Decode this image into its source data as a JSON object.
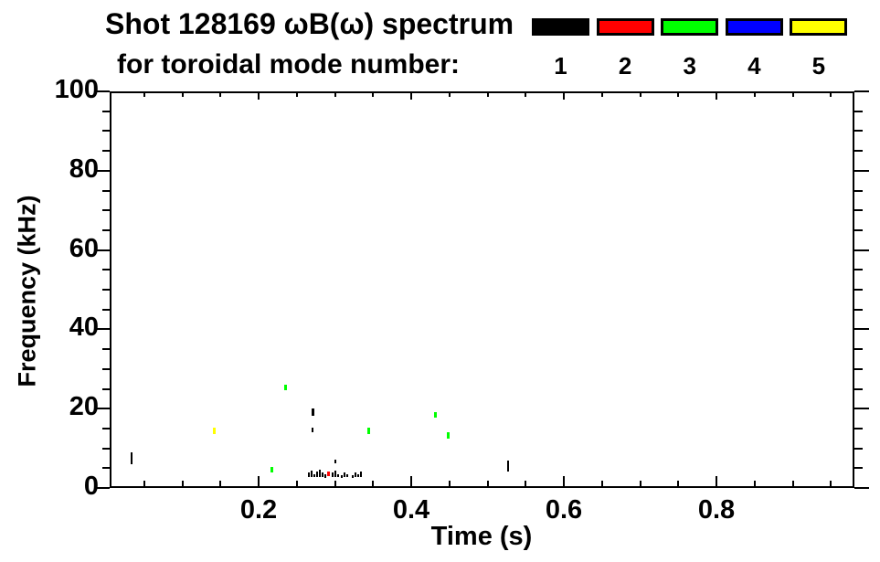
{
  "header": {
    "title_line1": "Shot 128169 ωB(ω) spectrum",
    "title_line2": "for toroidal mode number:"
  },
  "legend": {
    "modes": [
      {
        "label": "1",
        "color": "#000000"
      },
      {
        "label": "2",
        "color": "#ff0000"
      },
      {
        "label": "3",
        "color": "#00ff00"
      },
      {
        "label": "4",
        "color": "#0000ff"
      },
      {
        "label": "5",
        "color": "#ffff00"
      }
    ]
  },
  "chart_data": {
    "type": "scatter",
    "title": "Shot 128169 ωB(ω) spectrum for toroidal mode number: 1 2 3 4 5",
    "xlabel": "Time (s)",
    "ylabel": "Frequency (kHz)",
    "xlim": [
      0.0,
      0.98
    ],
    "ylim": [
      0,
      100
    ],
    "x_major_ticks": [
      0.2,
      0.4,
      0.6,
      0.8
    ],
    "x_tick_labels": [
      "0.2",
      "0.4",
      "0.6",
      "0.8"
    ],
    "x_minor_step": 0.05,
    "y_major_ticks": [
      0,
      20,
      40,
      60,
      80,
      100
    ],
    "y_tick_labels": [
      "0",
      "20",
      "40",
      "60",
      "80",
      "100"
    ],
    "y_minor_step": 5,
    "grid": false,
    "legend_position": "top-right",
    "series": [
      {
        "name": "1",
        "mode_number": 1,
        "color": "#000000",
        "points": [
          {
            "t": 0.034,
            "f": 7.4,
            "df": 3.0,
            "w": 2
          },
          {
            "t": 0.271,
            "f": 19.2,
            "df": 1.8,
            "w": 3
          },
          {
            "t": 0.271,
            "f": 14.6,
            "df": 1.1,
            "w": 2
          },
          {
            "t": 0.266,
            "f": 3.3,
            "df": 1.1,
            "w": 2
          },
          {
            "t": 0.269,
            "f": 3.6,
            "df": 1.6,
            "w": 2
          },
          {
            "t": 0.273,
            "f": 3.1,
            "df": 0.9,
            "w": 2
          },
          {
            "t": 0.277,
            "f": 3.4,
            "df": 1.4,
            "w": 2
          },
          {
            "t": 0.28,
            "f": 3.7,
            "df": 1.8,
            "w": 2
          },
          {
            "t": 0.284,
            "f": 3.3,
            "df": 1.1,
            "w": 2
          },
          {
            "t": 0.287,
            "f": 3.0,
            "df": 0.9,
            "w": 2
          },
          {
            "t": 0.297,
            "f": 3.3,
            "df": 1.1,
            "w": 2
          },
          {
            "t": 0.3,
            "f": 6.7,
            "df": 0.9,
            "w": 2
          },
          {
            "t": 0.301,
            "f": 3.6,
            "df": 1.6,
            "w": 2
          },
          {
            "t": 0.304,
            "f": 3.1,
            "df": 0.9,
            "w": 2
          },
          {
            "t": 0.309,
            "f": 2.9,
            "df": 0.7,
            "w": 2
          },
          {
            "t": 0.313,
            "f": 3.3,
            "df": 1.1,
            "w": 2
          },
          {
            "t": 0.316,
            "f": 3.1,
            "df": 0.9,
            "w": 2
          },
          {
            "t": 0.323,
            "f": 2.9,
            "df": 0.7,
            "w": 2
          },
          {
            "t": 0.327,
            "f": 3.3,
            "df": 1.1,
            "w": 2
          },
          {
            "t": 0.331,
            "f": 3.1,
            "df": 0.9,
            "w": 2
          },
          {
            "t": 0.334,
            "f": 3.5,
            "df": 1.4,
            "w": 2
          },
          {
            "t": 0.527,
            "f": 5.5,
            "df": 2.8,
            "w": 2
          }
        ]
      },
      {
        "name": "2",
        "mode_number": 2,
        "color": "#ff0000",
        "points": [
          {
            "t": 0.292,
            "f": 3.6,
            "df": 1.3,
            "w": 3
          }
        ]
      },
      {
        "name": "3",
        "mode_number": 3,
        "color": "#00ff00",
        "points": [
          {
            "t": 0.217,
            "f": 4.5,
            "df": 1.4,
            "w": 3
          },
          {
            "t": 0.235,
            "f": 25.4,
            "df": 1.4,
            "w": 3
          },
          {
            "t": 0.344,
            "f": 14.4,
            "df": 1.4,
            "w": 3
          },
          {
            "t": 0.432,
            "f": 18.4,
            "df": 1.4,
            "w": 3
          },
          {
            "t": 0.449,
            "f": 13.3,
            "df": 1.6,
            "w": 3
          }
        ]
      },
      {
        "name": "4",
        "mode_number": 4,
        "color": "#0000ff",
        "points": []
      },
      {
        "name": "5",
        "mode_number": 5,
        "color": "#ffff00",
        "points": [
          {
            "t": 0.142,
            "f": 14.4,
            "df": 1.4,
            "w": 3
          }
        ]
      }
    ]
  }
}
